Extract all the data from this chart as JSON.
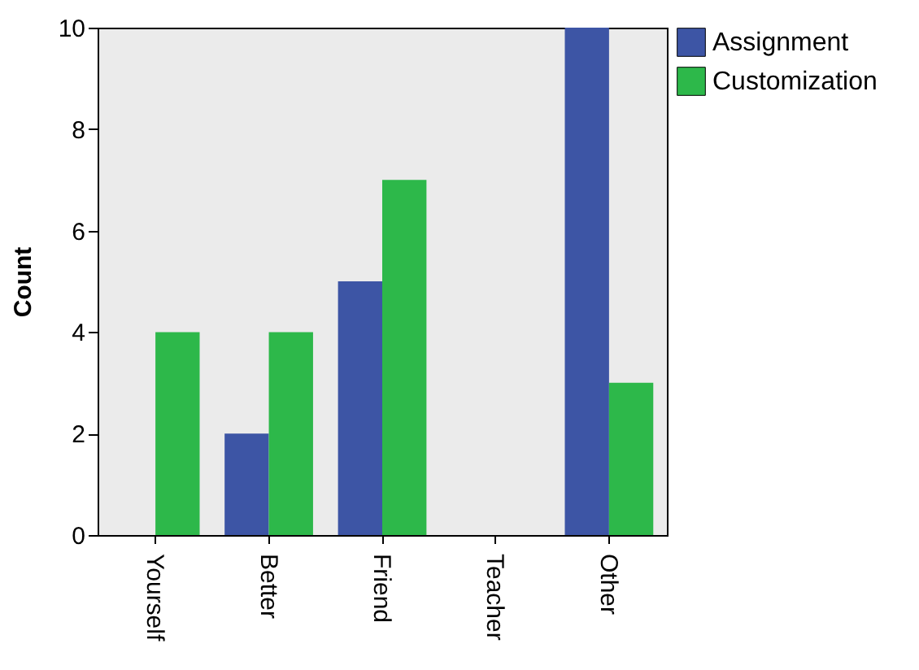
{
  "chart_data": {
    "type": "bar",
    "ylabel": "Count",
    "categories": [
      "Yourself",
      "Better",
      "Friend",
      "Teacher",
      "Other"
    ],
    "series": [
      {
        "name": "Assignment",
        "color": "#3d55a5",
        "values": [
          0,
          2,
          5,
          0,
          10
        ]
      },
      {
        "name": "Customization",
        "color": "#2db84a",
        "values": [
          4,
          4,
          7,
          0,
          3
        ]
      }
    ],
    "ylim": [
      0,
      10
    ],
    "yticks": [
      0,
      2,
      4,
      6,
      8,
      10
    ],
    "grid": false,
    "legend": "top right"
  }
}
